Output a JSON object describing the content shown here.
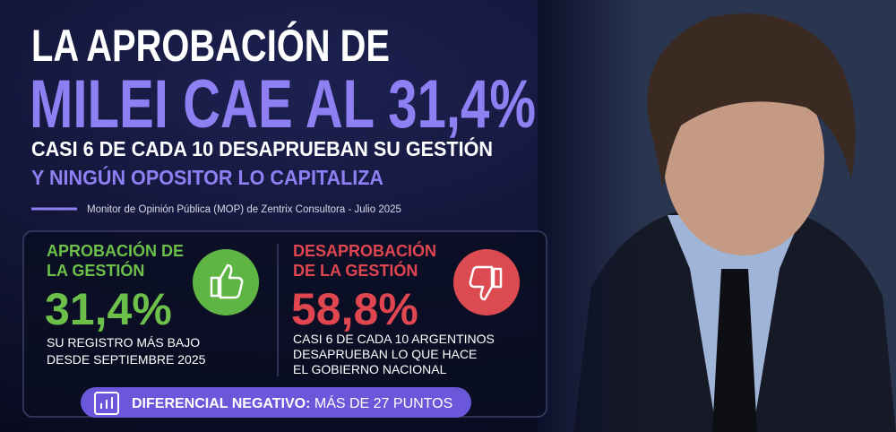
{
  "header": {
    "title_line1": "LA APROBACIÓN DE",
    "title_line2": "MILEI CAE AL 31,4%",
    "subtitle_line1": "CASI 6 DE CADA 10 DESAPRUEBAN SU GESTIÓN",
    "subtitle_line2": "Y NINGÚN OPOSITOR LO CAPITALIZA",
    "source": "Monitor de Opinión Pública (MOP) de Zentrix Consultora - Julio 2025"
  },
  "approval": {
    "label_line1": "APROBACIÓN DE",
    "label_line2": "LA GESTIÓN",
    "value": "31,4%",
    "note_line1": "SU REGISTRO MÁS BAJO",
    "note_line2": "DESDE SEPTIEMBRE 2025"
  },
  "disapproval": {
    "label_line1": "DESAPROBACIÓN",
    "label_line2": "DE LA GESTIÓN",
    "value": "58,8%",
    "note_line1": "CASI 6 DE CADA 10 ARGENTINOS",
    "note_line2": "DESAPRUEBAN LO QUE HACE",
    "note_line3": "EL GOBIERNO NACIONAL"
  },
  "differential": {
    "label": "DIFERENCIAL NEGATIVO:",
    "text": " MÁS DE 27 PUNTOS"
  }
}
